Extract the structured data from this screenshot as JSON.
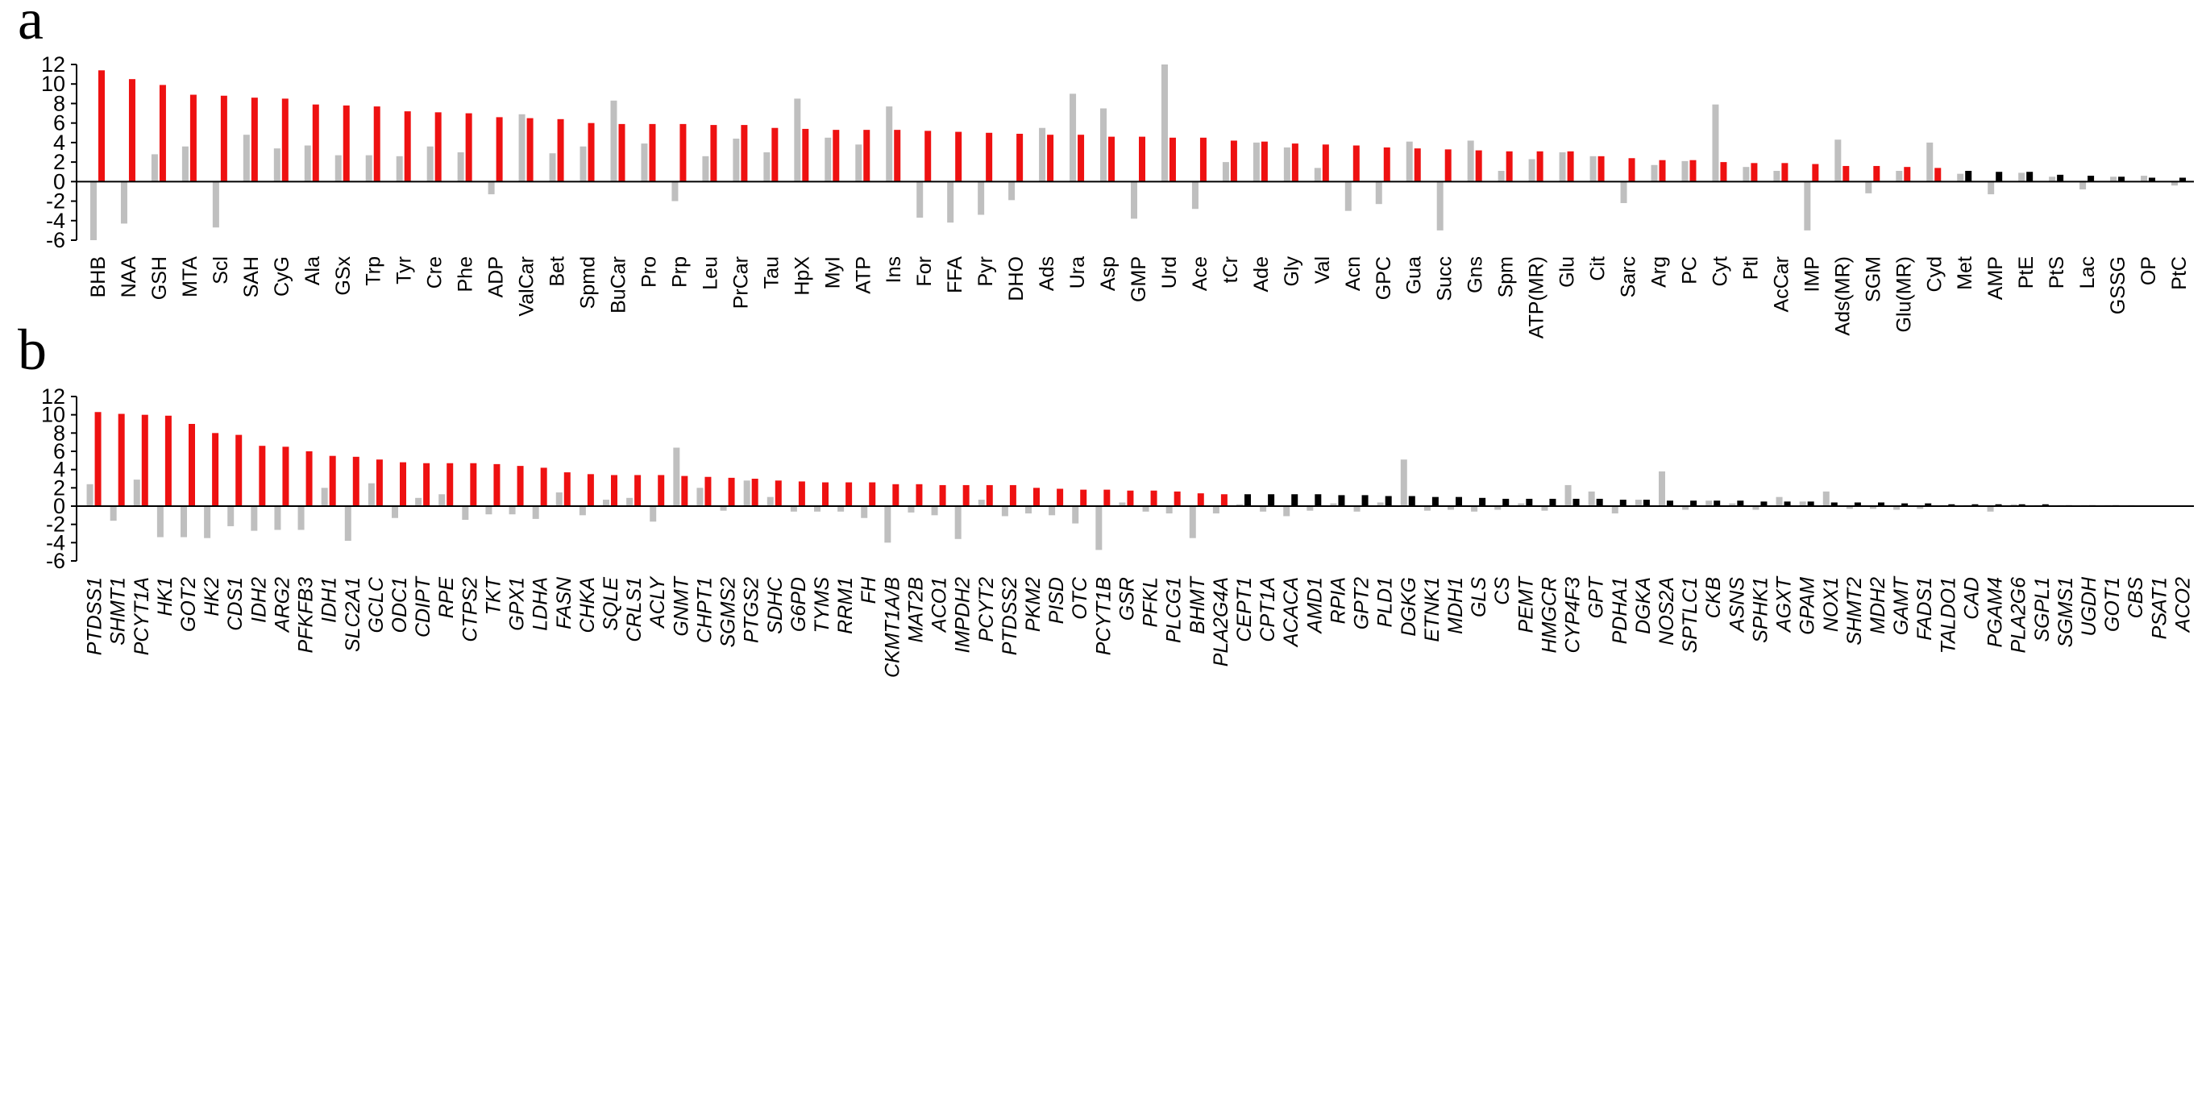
{
  "colors": {
    "significant": "#ee1111",
    "nonsignificant": "#000000",
    "reference": "#bfbfbf"
  },
  "chart_data": [
    {
      "type": "bar",
      "panel_label": "a",
      "ylim": [
        -6,
        12
      ],
      "yticks": [
        -6,
        -4,
        -2,
        0,
        2,
        4,
        6,
        8,
        10,
        12
      ],
      "grid": false,
      "categories": [
        "BHB",
        "NAA",
        "GSH",
        "MTA",
        "Scl",
        "SAH",
        "CyG",
        "Ala",
        "GSx",
        "Trp",
        "Tyr",
        "Cre",
        "Phe",
        "ADP",
        "ValCar",
        "Bet",
        "Spmd",
        "BuCar",
        "Pro",
        "Prp",
        "Leu",
        "PrCar",
        "Tau",
        "HpX",
        "MyI",
        "ATP",
        "Ins",
        "For",
        "FFA",
        "Pyr",
        "DHO",
        "Ads",
        "Ura",
        "Asp",
        "GMP",
        "Urd",
        "Ace",
        "tCr",
        "Ade",
        "Gly",
        "Val",
        "Acn",
        "GPC",
        "Gua",
        "Succ",
        "Gns",
        "Spm",
        "ATP(MR)",
        "Glu",
        "Cit",
        "Sarc",
        "Arg",
        "PC",
        "Cyt",
        "Ptl",
        "AcCar",
        "IMP",
        "Ads(MR)",
        "SGM",
        "Glu(MR)",
        "Cyd",
        "Met",
        "AMP",
        "PtE",
        "PtS",
        "Lac",
        "GSSG",
        "OP",
        "PtC"
      ],
      "values": [
        11.4,
        10.5,
        9.9,
        8.9,
        8.8,
        8.6,
        8.5,
        7.9,
        7.8,
        7.7,
        7.2,
        7.1,
        7.0,
        6.6,
        6.5,
        6.4,
        6.0,
        5.9,
        5.9,
        5.9,
        5.8,
        5.8,
        5.5,
        5.4,
        5.3,
        5.3,
        5.3,
        5.2,
        5.1,
        5.0,
        4.9,
        4.8,
        4.8,
        4.6,
        4.6,
        4.5,
        4.5,
        4.2,
        4.1,
        3.9,
        3.8,
        3.7,
        3.5,
        3.4,
        3.3,
        3.2,
        3.1,
        3.1,
        3.1,
        2.6,
        2.4,
        2.2,
        2.2,
        2.0,
        1.9,
        1.9,
        1.8,
        1.6,
        1.6,
        1.5,
        1.4,
        1.1,
        1.0,
        1.0,
        0.7,
        0.6,
        0.5,
        0.4,
        0.4
      ],
      "reference_values": [
        -6.0,
        -4.3,
        2.8,
        3.6,
        -4.7,
        4.8,
        3.4,
        3.7,
        2.7,
        2.7,
        2.6,
        3.6,
        3.0,
        -1.3,
        6.9,
        2.9,
        3.6,
        8.3,
        3.9,
        -2.0,
        2.6,
        4.4,
        3.0,
        8.5,
        4.5,
        3.8,
        7.7,
        -3.7,
        -4.2,
        -3.4,
        -1.9,
        5.5,
        9.0,
        7.5,
        -3.8,
        12.0,
        -2.8,
        2.0,
        4.0,
        3.5,
        1.4,
        -3.0,
        -2.3,
        4.1,
        -5.0,
        4.2,
        1.1,
        2.3,
        3.0,
        2.6,
        -2.2,
        1.7,
        2.1,
        7.9,
        1.5,
        1.1,
        -5.0,
        4.3,
        -1.2,
        1.1,
        4.0,
        0.8,
        -1.3,
        0.9,
        0.5,
        -0.8,
        0.5,
        0.6,
        -0.4
      ],
      "significant": [
        true,
        true,
        true,
        true,
        true,
        true,
        true,
        true,
        true,
        true,
        true,
        true,
        true,
        true,
        true,
        true,
        true,
        true,
        true,
        true,
        true,
        true,
        true,
        true,
        true,
        true,
        true,
        true,
        true,
        true,
        true,
        true,
        true,
        true,
        true,
        true,
        true,
        true,
        true,
        true,
        true,
        true,
        true,
        true,
        true,
        true,
        true,
        true,
        true,
        true,
        true,
        true,
        true,
        true,
        true,
        true,
        true,
        true,
        true,
        true,
        true,
        false,
        false,
        false,
        false,
        false,
        false,
        false,
        false
      ]
    },
    {
      "type": "bar",
      "panel_label": "b",
      "ylim": [
        -6,
        12
      ],
      "yticks": [
        -6,
        -4,
        -2,
        0,
        2,
        4,
        6,
        8,
        10,
        12
      ],
      "grid": false,
      "categories": [
        "PTDSS1",
        "SHMT1",
        "PCYT1A",
        "HK1",
        "GOT2",
        "HK2",
        "CDS1",
        "IDH2",
        "ARG2",
        "PFKFB3",
        "IDH1",
        "SLC2A1",
        "GCLC",
        "ODC1",
        "CDIPT",
        "RPE",
        "CTPS2",
        "TKT",
        "GPX1",
        "LDHA",
        "FASN",
        "CHKA",
        "SQLE",
        "CRLS1",
        "ACLY",
        "GNMT",
        "CHPT1",
        "SGMS2",
        "PTGS2",
        "SDHC",
        "G6PD",
        "TYMS",
        "RRM1",
        "FH",
        "CKMT1A/B",
        "MAT2B",
        "ACO1",
        "IMPDH2",
        "PCYT2",
        "PTDSS2",
        "PKM2",
        "PISD",
        "OTC",
        "PCYT1B",
        "GSR",
        "PFKL",
        "PLCG1",
        "BHMT",
        "PLA2G4A",
        "CEPT1",
        "CPT1A",
        "ACACA",
        "AMD1",
        "RPIA",
        "GPT2",
        "PLD1",
        "DGKG",
        "ETNK1",
        "MDH1",
        "GLS",
        "CS",
        "PEMT",
        "HMGCR",
        "CYP4F3",
        "GPT",
        "PDHA1",
        "DGKA",
        "NOS2A",
        "SPTLC1",
        "CKB",
        "ASNS",
        "SPHK1",
        "AGXT",
        "GPAM",
        "NOX1",
        "SHMT2",
        "MDH2",
        "GAMT",
        "FADS1",
        "TALDO1",
        "CAD",
        "PGAM4",
        "PLA2G6",
        "SGPL1",
        "SGMS1",
        "UGDH",
        "GOT1",
        "CBS",
        "PSAT1",
        "ACO2"
      ],
      "values": [
        10.3,
        10.1,
        10.0,
        9.9,
        9.0,
        8.0,
        7.8,
        6.6,
        6.5,
        6.0,
        5.5,
        5.4,
        5.1,
        4.8,
        4.7,
        4.7,
        4.7,
        4.6,
        4.4,
        4.2,
        3.7,
        3.5,
        3.4,
        3.4,
        3.4,
        3.3,
        3.2,
        3.1,
        3.0,
        2.8,
        2.7,
        2.6,
        2.6,
        2.6,
        2.4,
        2.4,
        2.3,
        2.3,
        2.3,
        2.3,
        2.0,
        1.9,
        1.8,
        1.8,
        1.7,
        1.7,
        1.6,
        1.4,
        1.3,
        1.3,
        1.3,
        1.3,
        1.3,
        1.2,
        1.2,
        1.1,
        1.1,
        1.0,
        1.0,
        0.9,
        0.8,
        0.8,
        0.8,
        0.8,
        0.8,
        0.7,
        0.7,
        0.6,
        0.6,
        0.6,
        0.6,
        0.5,
        0.5,
        0.5,
        0.4,
        0.4,
        0.4,
        0.3,
        0.3,
        0.2,
        0.2,
        0.2,
        0.2,
        0.2,
        0.1,
        0.1,
        0.1,
        0.0,
        0.0,
        0.0
      ],
      "reference_values": [
        2.4,
        -1.6,
        2.9,
        -3.4,
        -3.4,
        -3.5,
        -2.2,
        -2.7,
        -2.6,
        -2.6,
        2.0,
        -3.8,
        2.5,
        -1.3,
        0.9,
        1.3,
        -1.5,
        -0.9,
        -0.9,
        -1.4,
        1.5,
        -1.0,
        0.7,
        0.9,
        -1.7,
        6.4,
        2.0,
        -0.5,
        2.8,
        1.0,
        -0.6,
        -0.6,
        -0.6,
        -1.3,
        -4.0,
        -0.7,
        -1.0,
        -3.6,
        0.7,
        -1.1,
        -0.8,
        -1.0,
        -1.9,
        -4.8,
        0.4,
        -0.6,
        -0.8,
        -3.5,
        -0.8,
        0.2,
        -0.6,
        -1.1,
        -0.5,
        0.3,
        -0.6,
        0.4,
        5.1,
        -0.5,
        -0.4,
        -0.6,
        -0.4,
        0.3,
        -0.5,
        2.3,
        1.6,
        -0.8,
        0.7,
        3.8,
        -0.4,
        0.6,
        0.3,
        -0.4,
        1.0,
        0.5,
        1.6,
        -0.3,
        -0.3,
        -0.4,
        -0.3,
        0.1,
        0.1,
        -0.6,
        0.2,
        0.1,
        0.1,
        0.1,
        0.1,
        0.1,
        0.0,
        0.0
      ],
      "significant": [
        true,
        true,
        true,
        true,
        true,
        true,
        true,
        true,
        true,
        true,
        true,
        true,
        true,
        true,
        true,
        true,
        true,
        true,
        true,
        true,
        true,
        true,
        true,
        true,
        true,
        true,
        true,
        true,
        true,
        true,
        true,
        true,
        true,
        true,
        true,
        true,
        true,
        true,
        true,
        true,
        true,
        true,
        true,
        true,
        true,
        true,
        true,
        true,
        true,
        false,
        false,
        false,
        false,
        false,
        false,
        false,
        false,
        false,
        false,
        false,
        false,
        false,
        false,
        false,
        false,
        false,
        false,
        false,
        false,
        false,
        false,
        false,
        false,
        false,
        false,
        false,
        false,
        false,
        false,
        false,
        false,
        false,
        false,
        false,
        false,
        false,
        false,
        false,
        false,
        false
      ]
    }
  ]
}
